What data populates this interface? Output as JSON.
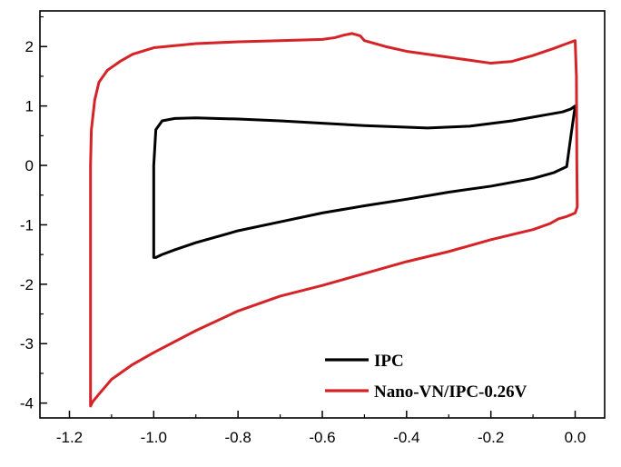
{
  "chart_data": {
    "type": "line",
    "title": "",
    "xlabel": "",
    "ylabel": "",
    "xlim": [
      -1.27,
      0.07
    ],
    "ylim": [
      -4.25,
      2.6
    ],
    "grid": false,
    "legend_position": "bottom-right",
    "x_ticks": [
      -1.2,
      -1.0,
      -0.8,
      -0.6,
      -0.4,
      -0.2,
      0.0
    ],
    "x_tick_labels": [
      "-1.2",
      "-1.0",
      "-0.8",
      "-0.6",
      "-0.4",
      "-0.2",
      "0.0"
    ],
    "y_ticks": [
      -4,
      -3,
      -2,
      -1,
      0,
      1,
      2
    ],
    "y_tick_labels": [
      "-4",
      "-3",
      "-2",
      "-1",
      "0",
      "1",
      "2"
    ],
    "series": [
      {
        "name": "IPC",
        "color": "#000000",
        "x": [
          0.0,
          -0.01,
          -0.03,
          -0.07,
          -0.15,
          -0.25,
          -0.35,
          -0.5,
          -0.6,
          -0.7,
          -0.8,
          -0.9,
          -0.95,
          -0.98,
          -0.995,
          -1.0,
          -1.0,
          -0.995,
          -0.98,
          -0.95,
          -0.9,
          -0.8,
          -0.7,
          -0.6,
          -0.5,
          -0.4,
          -0.3,
          -0.2,
          -0.1,
          -0.05,
          -0.02,
          -0.01,
          0.0
        ],
        "y": [
          1.0,
          0.95,
          0.9,
          0.85,
          0.75,
          0.66,
          0.63,
          0.67,
          0.71,
          0.75,
          0.78,
          0.8,
          0.79,
          0.75,
          0.6,
          0.0,
          -1.55,
          -1.55,
          -1.5,
          -1.42,
          -1.3,
          -1.1,
          -0.95,
          -0.8,
          -0.68,
          -0.57,
          -0.45,
          -0.35,
          -0.22,
          -0.12,
          -0.02,
          0.5,
          1.0
        ]
      },
      {
        "name": "Nano-VN/IPC-0.26V",
        "color": "#d42428",
        "x": [
          -1.15,
          -1.15,
          -1.148,
          -1.14,
          -1.13,
          -1.11,
          -1.08,
          -1.05,
          -1.0,
          -0.9,
          -0.8,
          -0.7,
          -0.6,
          -0.57,
          -0.55,
          -0.53,
          -0.51,
          -0.5,
          -0.45,
          -0.4,
          -0.3,
          -0.2,
          -0.15,
          -0.1,
          -0.05,
          -0.02,
          0.0,
          0.003,
          0.004,
          0.005,
          0.0,
          -0.01,
          -0.02,
          -0.04,
          -0.06,
          -0.1,
          -0.2,
          -0.3,
          -0.4,
          -0.5,
          -0.6,
          -0.7,
          -0.8,
          -0.9,
          -1.0,
          -1.05,
          -1.1,
          -1.13,
          -1.145,
          -1.15
        ],
        "y": [
          -4.05,
          0.0,
          0.6,
          1.1,
          1.4,
          1.6,
          1.75,
          1.87,
          1.98,
          2.05,
          2.08,
          2.1,
          2.12,
          2.15,
          2.19,
          2.22,
          2.18,
          2.1,
          2.0,
          1.92,
          1.82,
          1.72,
          1.75,
          1.85,
          1.97,
          2.05,
          2.1,
          1.5,
          0.0,
          -0.7,
          -0.8,
          -0.83,
          -0.86,
          -0.9,
          -0.98,
          -1.08,
          -1.25,
          -1.45,
          -1.62,
          -1.82,
          -2.02,
          -2.2,
          -2.45,
          -2.78,
          -3.15,
          -3.35,
          -3.6,
          -3.85,
          -3.98,
          -4.05
        ]
      }
    ]
  }
}
